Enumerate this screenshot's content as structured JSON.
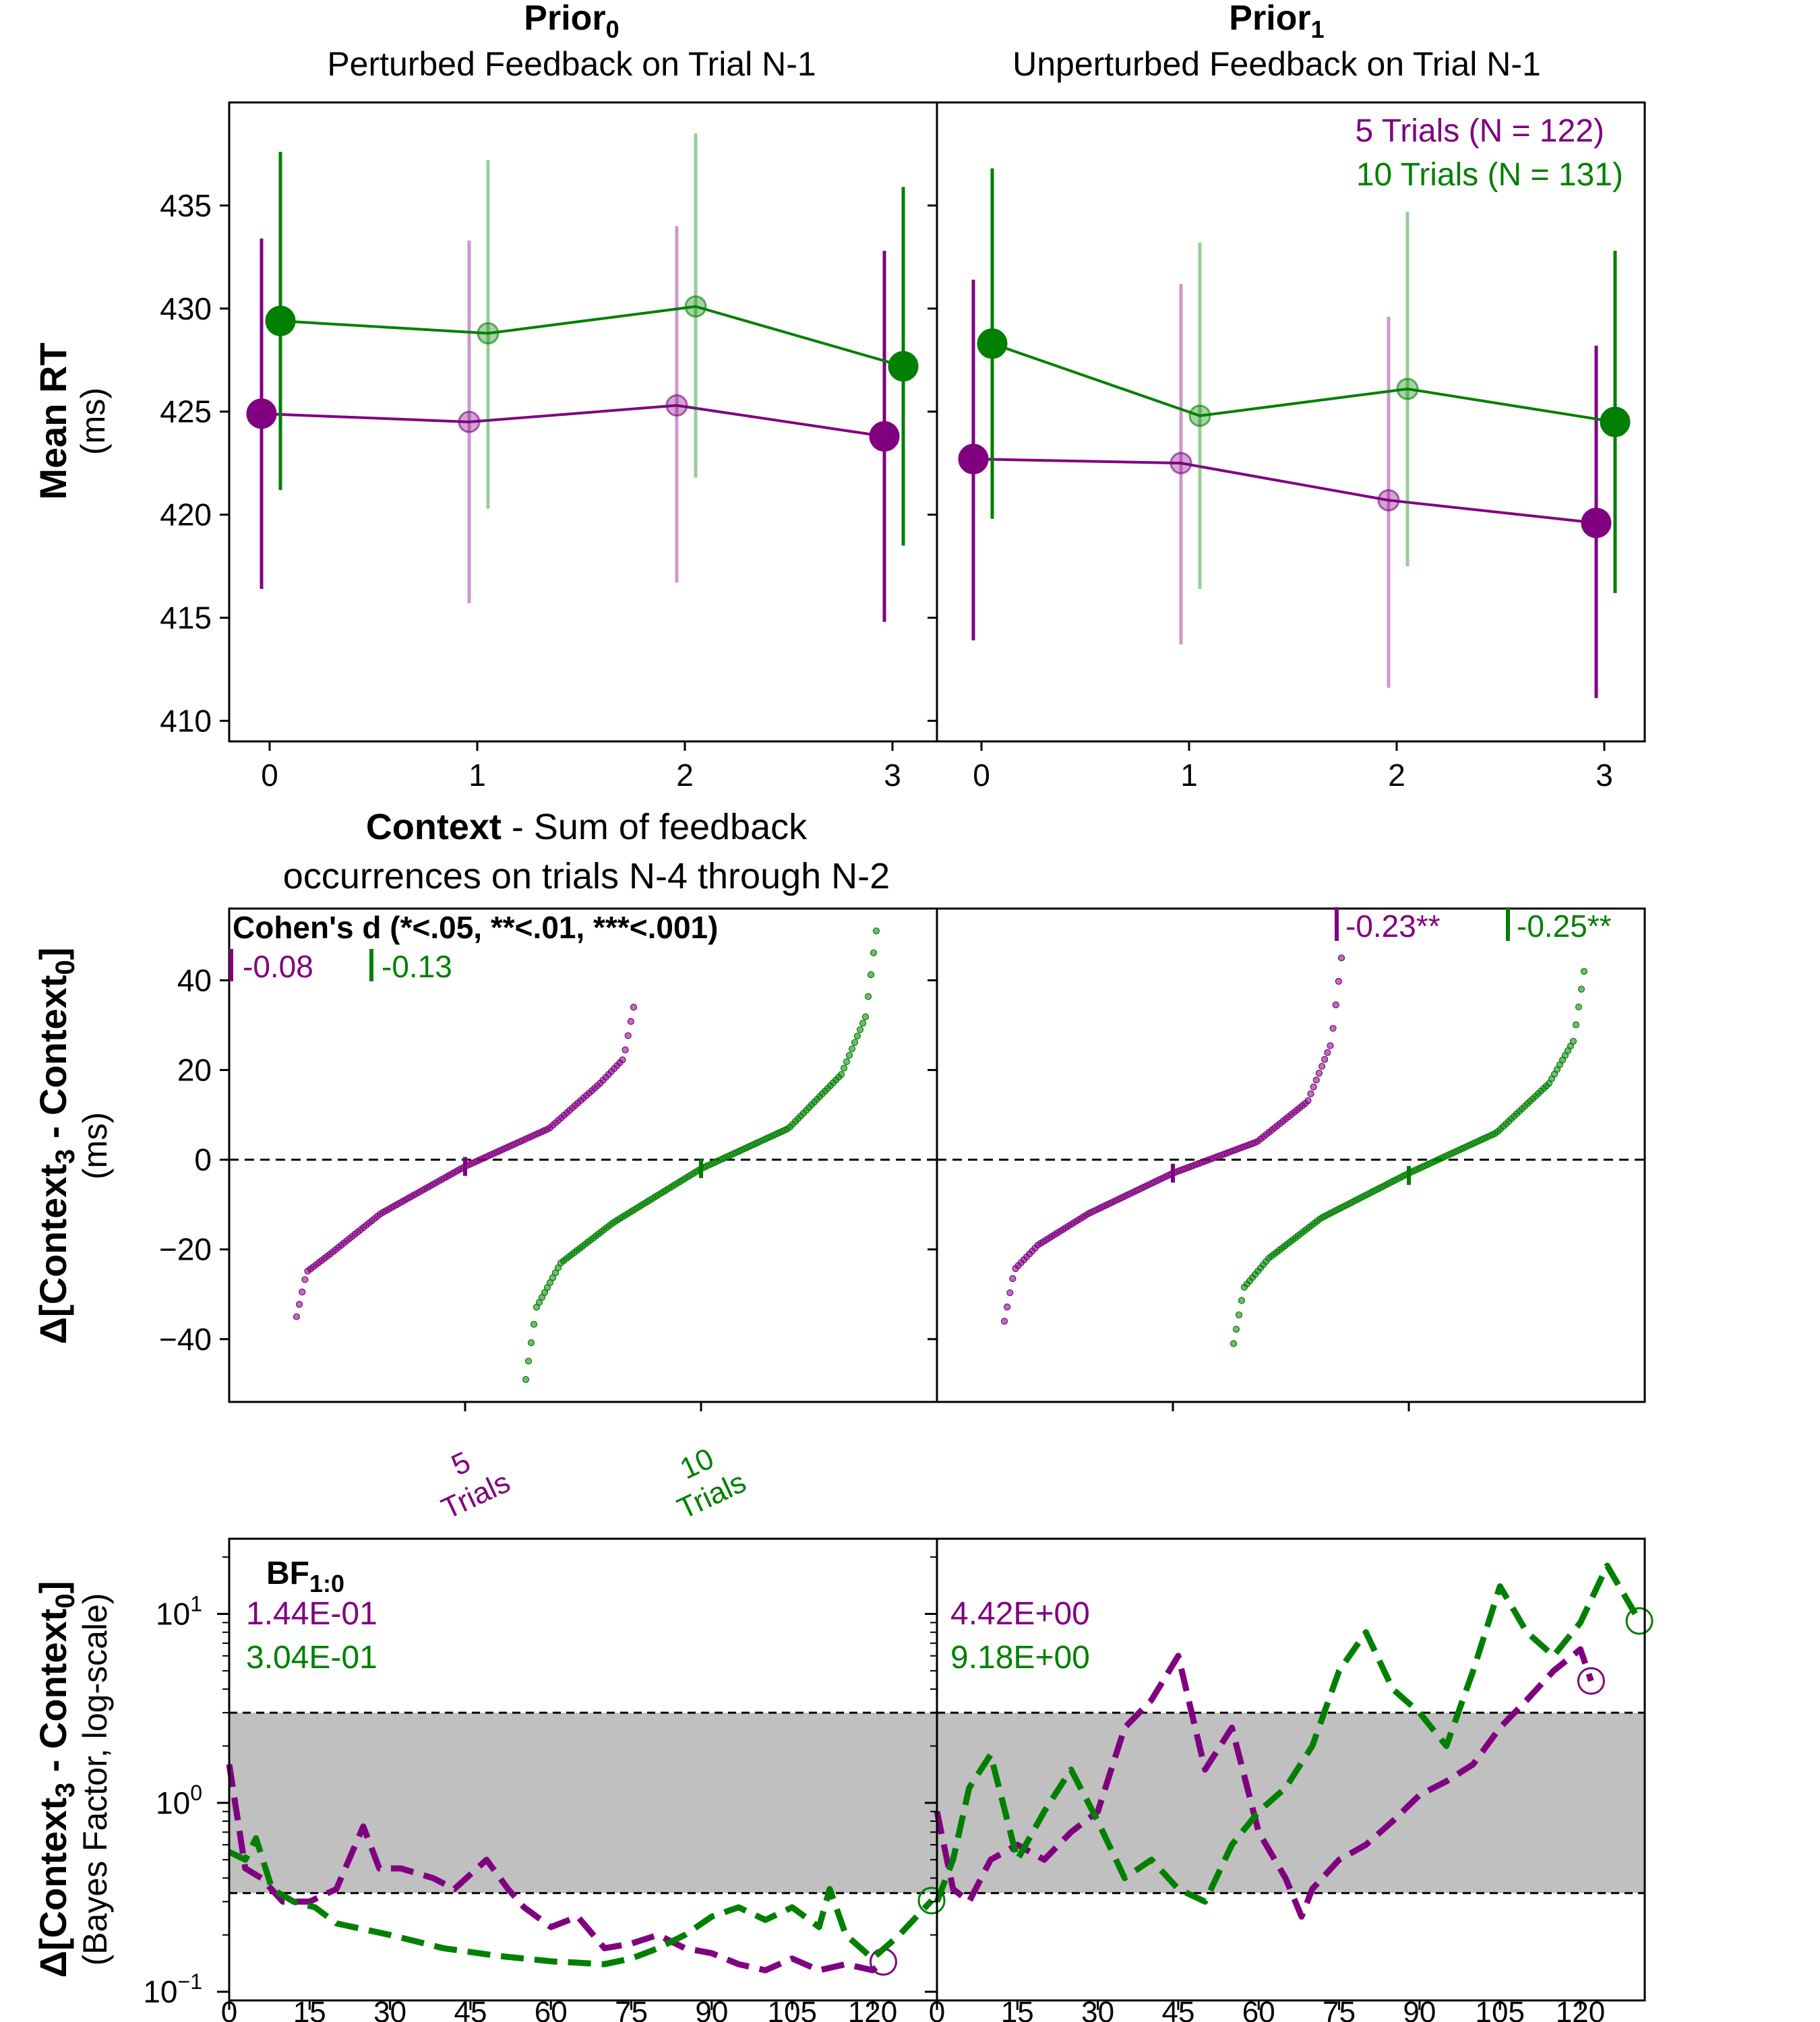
{
  "colors": {
    "five": "#800080",
    "ten": "#008000",
    "band": "#c0c0c0",
    "axis": "#000000"
  },
  "columns": [
    {
      "title_main": "Prior",
      "title_sub": "0",
      "subtitle": "Perturbed Feedback on Trial N-1"
    },
    {
      "title_main": "Prior",
      "title_sub": "1",
      "subtitle": "Unperturbed Feedback on Trial N-1"
    }
  ],
  "legend": {
    "five": "5 Trials (N = 122)",
    "ten": "10 Trials (N = 131)"
  },
  "row1": {
    "ylabel_bold": "Mean RT",
    "ylabel_unit": "(ms)",
    "xlabel_bold": "Context",
    "xlabel_rest": " - Sum of feedback",
    "xlabel_line2": "occurrences on trials N-4 through N-2"
  },
  "row2": {
    "ylabel_pre": "Δ[Context",
    "ylabel_sub1": "3",
    "ylabel_mid": " - Context",
    "ylabel_sub2": "0",
    "ylabel_post": "]",
    "ylabel_unit": "(ms)",
    "cohen_title": "Cohen's d (*<.05, **<.01, ***<.001)",
    "cohen_left": {
      "five": "-0.08",
      "ten": "-0.13"
    },
    "cohen_right": {
      "five": "-0.23**",
      "ten": "-0.25**"
    },
    "xtick_five": [
      "5",
      "Trials"
    ],
    "xtick_ten": [
      "10",
      "Trials"
    ]
  },
  "row3": {
    "ylabel_pre": "Δ[Context",
    "ylabel_sub1": "3",
    "ylabel_mid": " - Context",
    "ylabel_sub2": "0",
    "ylabel_post": "]",
    "ylabel_unit": "(Bayes Factor, log-scale)",
    "bf_title": "BF",
    "bf_sub": "1:0",
    "bf_left": {
      "five": "1.44E-01",
      "ten": "3.04E-01"
    },
    "bf_right": {
      "five": "4.42E+00",
      "ten": "9.18E+00"
    }
  },
  "chart_data": [
    {
      "type": "line",
      "panel": "Prior_0 mean RT",
      "x": [
        0,
        1,
        2,
        3
      ],
      "xlabel": "Context - Sum of feedback occurrences on trials N-4 through N-2",
      "ylabel": "Mean RT (ms)",
      "ylim": [
        409,
        440
      ],
      "yticks": [
        410,
        415,
        420,
        425,
        430,
        435
      ],
      "series": [
        {
          "name": "5 Trials (N = 122)",
          "values": [
            424.9,
            424.5,
            425.3,
            423.8
          ],
          "err_low": [
            416.4,
            415.7,
            416.7,
            414.8
          ],
          "err_high": [
            433.4,
            433.3,
            434.0,
            432.8
          ]
        },
        {
          "name": "10 Trials (N = 131)",
          "values": [
            429.4,
            428.8,
            430.1,
            427.2
          ],
          "err_low": [
            421.2,
            420.3,
            421.8,
            418.5
          ],
          "err_high": [
            437.6,
            437.2,
            438.5,
            435.9
          ]
        }
      ]
    },
    {
      "type": "line",
      "panel": "Prior_1 mean RT",
      "x": [
        0,
        1,
        2,
        3
      ],
      "ylim": [
        409,
        440
      ],
      "series": [
        {
          "name": "5 Trials (N = 122)",
          "values": [
            422.7,
            422.5,
            420.7,
            419.6
          ],
          "err_low": [
            413.9,
            413.7,
            411.6,
            411.1
          ],
          "err_high": [
            431.4,
            431.2,
            429.6,
            428.2
          ]
        },
        {
          "name": "10 Trials (N = 131)",
          "values": [
            428.3,
            424.8,
            426.1,
            424.5
          ],
          "err_low": [
            419.8,
            416.4,
            417.5,
            416.2
          ],
          "err_high": [
            436.8,
            433.2,
            434.7,
            432.8
          ]
        }
      ]
    },
    {
      "type": "scatter",
      "panel": "Prior_0 sorted differences",
      "ylabel": "Δ[Context3 - Context0] (ms)",
      "ylim": [
        -54,
        56
      ],
      "yticks": [
        -40,
        -20,
        0,
        20,
        40
      ],
      "categories": [
        "5 Trials",
        "10 Trials"
      ],
      "series": [
        {
          "name": "5 Trials",
          "count": 122,
          "min": -35,
          "q10": -21,
          "q25": -12,
          "median": -1.5,
          "q75": 7,
          "q90": 17,
          "max": 34,
          "mean_marker": -1.5
        },
        {
          "name": "10 Trials",
          "count": 131,
          "min": -49,
          "q10": -23,
          "q25": -14,
          "median": -2,
          "q75": 7,
          "q90": 19,
          "max": 51,
          "mean_marker": -2
        }
      ]
    },
    {
      "type": "scatter",
      "panel": "Prior_1 sorted differences",
      "ylim": [
        -54,
        56
      ],
      "series": [
        {
          "name": "5 Trials",
          "count": 122,
          "min": -36,
          "q10": -19,
          "q25": -12,
          "median": -3,
          "q75": 4,
          "q90": 13,
          "max": 45,
          "mean_marker": -3
        },
        {
          "name": "10 Trials",
          "count": 131,
          "min": -41,
          "q10": -22,
          "q25": -13,
          "median": -3,
          "q75": 6,
          "q90": 17,
          "max": 42,
          "mean_marker": -3.5
        }
      ]
    },
    {
      "type": "line",
      "panel": "Prior_0 Bayes factor",
      "yscale": "log",
      "ylim": [
        0.09,
        25
      ],
      "yticks": [
        0.1,
        1,
        10
      ],
      "xticks": [
        0,
        15,
        30,
        45,
        60,
        75,
        90,
        105,
        120
      ],
      "band": [
        0.333,
        3
      ],
      "series": [
        {
          "name": "5 Trials",
          "x": [
            0,
            3,
            6,
            10,
            15,
            20,
            25,
            28,
            32,
            38,
            42,
            48,
            52,
            55,
            60,
            65,
            70,
            75,
            80,
            85,
            90,
            95,
            100,
            105,
            110,
            115,
            120,
            122
          ],
          "values": [
            1.6,
            0.45,
            0.4,
            0.3,
            0.3,
            0.35,
            0.75,
            0.45,
            0.45,
            0.4,
            0.35,
            0.5,
            0.35,
            0.28,
            0.22,
            0.25,
            0.17,
            0.18,
            0.2,
            0.17,
            0.16,
            0.14,
            0.13,
            0.15,
            0.13,
            0.14,
            0.13,
            0.144
          ]
        },
        {
          "name": "10 Trials",
          "x": [
            0,
            3,
            5,
            8,
            12,
            16,
            20,
            30,
            40,
            50,
            60,
            70,
            75,
            80,
            85,
            90,
            95,
            100,
            105,
            110,
            112,
            115,
            120,
            125,
            131
          ],
          "values": [
            0.55,
            0.5,
            0.65,
            0.35,
            0.3,
            0.28,
            0.23,
            0.2,
            0.17,
            0.155,
            0.145,
            0.14,
            0.15,
            0.17,
            0.2,
            0.25,
            0.28,
            0.24,
            0.28,
            0.22,
            0.35,
            0.2,
            0.15,
            0.2,
            0.304
          ]
        }
      ]
    },
    {
      "type": "line",
      "panel": "Prior_1 Bayes factor",
      "yscale": "log",
      "ylim": [
        0.09,
        25
      ],
      "band": [
        0.333,
        3
      ],
      "series": [
        {
          "name": "5 Trials",
          "x": [
            0,
            3,
            6,
            10,
            15,
            20,
            25,
            30,
            35,
            40,
            45,
            50,
            55,
            60,
            65,
            68,
            70,
            75,
            80,
            85,
            90,
            95,
            100,
            105,
            110,
            115,
            120,
            122
          ],
          "values": [
            0.9,
            0.35,
            0.3,
            0.5,
            0.6,
            0.5,
            0.7,
            0.9,
            2.5,
            3.5,
            6.0,
            1.5,
            2.5,
            0.7,
            0.4,
            0.25,
            0.35,
            0.5,
            0.6,
            0.8,
            1.1,
            1.3,
            1.6,
            2.5,
            3.5,
            5.0,
            6.5,
            4.42
          ]
        },
        {
          "name": "10 Trials",
          "x": [
            0,
            3,
            6,
            10,
            15,
            20,
            25,
            30,
            35,
            40,
            45,
            50,
            55,
            60,
            65,
            70,
            75,
            80,
            85,
            90,
            95,
            100,
            105,
            110,
            115,
            120,
            125,
            131
          ],
          "values": [
            0.3,
            0.5,
            1.2,
            1.8,
            0.5,
            0.9,
            1.5,
            0.8,
            0.4,
            0.5,
            0.35,
            0.3,
            0.6,
            0.9,
            1.2,
            2.0,
            5.0,
            8.0,
            4.0,
            3.0,
            2.0,
            5.0,
            14.0,
            8.0,
            6.0,
            9.0,
            18.0,
            9.18
          ]
        }
      ]
    }
  ]
}
